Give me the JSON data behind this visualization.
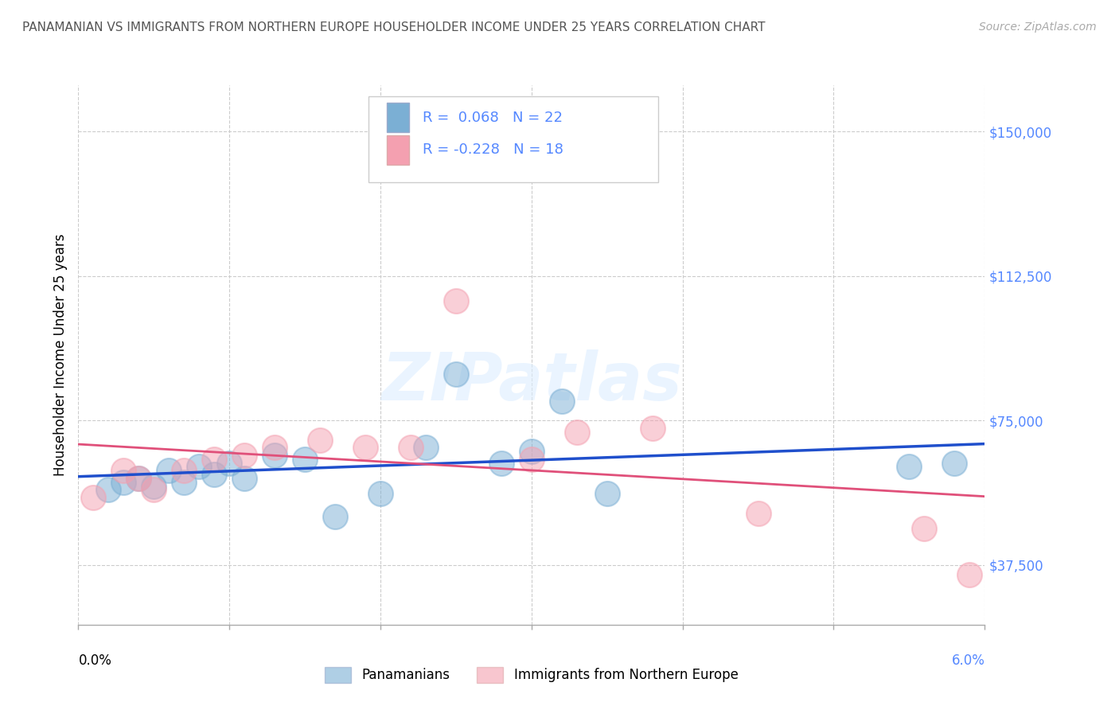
{
  "title": "PANAMANIAN VS IMMIGRANTS FROM NORTHERN EUROPE HOUSEHOLDER INCOME UNDER 25 YEARS CORRELATION CHART",
  "source": "Source: ZipAtlas.com",
  "ylabel": "Householder Income Under 25 years",
  "legend1_label": "Panamanians",
  "legend2_label": "Immigrants from Northern Europe",
  "legend1_R": "R =  0.068",
  "legend1_N": "N = 22",
  "legend2_R": "R = -0.228",
  "legend2_N": "N = 18",
  "yticks": [
    37500,
    75000,
    112500,
    150000
  ],
  "ytick_labels": [
    "$37,500",
    "$75,000",
    "$112,500",
    "$150,000"
  ],
  "xlim": [
    0.0,
    0.06
  ],
  "ylim": [
    22000,
    162000
  ],
  "watermark": "ZIPatlas",
  "blue_color": "#7bafd4",
  "pink_color": "#f4a0b0",
  "blue_line_color": "#1f4fcc",
  "pink_line_color": "#e0507a",
  "title_color": "#555555",
  "source_color": "#aaaaaa",
  "ytick_color": "#5588ff",
  "blue_scatter_x": [
    0.002,
    0.003,
    0.004,
    0.005,
    0.006,
    0.007,
    0.008,
    0.009,
    0.01,
    0.011,
    0.013,
    0.015,
    0.017,
    0.02,
    0.023,
    0.025,
    0.028,
    0.03,
    0.032,
    0.035,
    0.055,
    0.058
  ],
  "blue_scatter_y": [
    57000,
    59000,
    60000,
    58000,
    62000,
    59000,
    63000,
    61000,
    64000,
    60000,
    66000,
    65000,
    50000,
    56000,
    68000,
    87000,
    64000,
    67000,
    80000,
    56000,
    63000,
    64000
  ],
  "pink_scatter_x": [
    0.001,
    0.003,
    0.004,
    0.005,
    0.007,
    0.009,
    0.011,
    0.013,
    0.016,
    0.019,
    0.022,
    0.025,
    0.03,
    0.033,
    0.038,
    0.045,
    0.056,
    0.059
  ],
  "pink_scatter_y": [
    55000,
    62000,
    60000,
    57000,
    62000,
    65000,
    66000,
    68000,
    70000,
    68000,
    68000,
    106000,
    65000,
    72000,
    73000,
    51000,
    47000,
    35000
  ],
  "xtick_positions": [
    0.0,
    0.01,
    0.02,
    0.03,
    0.04,
    0.05,
    0.06
  ]
}
